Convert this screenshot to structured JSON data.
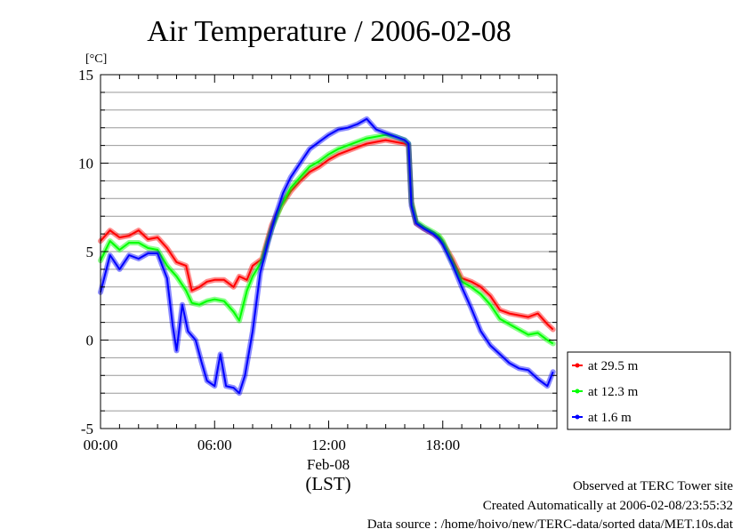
{
  "chart_data": {
    "type": "line",
    "title": "Air Temperature / 2006-02-08",
    "y_unit": "[°C]",
    "ylim": [
      -5,
      15
    ],
    "y_ticks": [
      {
        "value": 15,
        "label": "15"
      },
      {
        "value": 10,
        "label": "10"
      },
      {
        "value": 5,
        "label": "5"
      },
      {
        "value": 0,
        "label": "0"
      },
      {
        "value": -5,
        "label": "-5"
      }
    ],
    "xlim": [
      0,
      24
    ],
    "x_ticks": [
      {
        "value": 0,
        "label": "00:00"
      },
      {
        "value": 6,
        "label": "06:00"
      },
      {
        "value": 12,
        "label": "12:00"
      },
      {
        "value": 18,
        "label": "18:00"
      }
    ],
    "x_sublabel": "Feb-08",
    "x_axis_label": "(LST)",
    "grid": true,
    "legend_position": "right",
    "series": [
      {
        "name": "at 29.5 m",
        "color": "#ff0000",
        "points": [
          [
            0,
            5.6
          ],
          [
            0.5,
            6.2
          ],
          [
            1,
            5.8
          ],
          [
            1.5,
            5.9
          ],
          [
            2,
            6.2
          ],
          [
            2.5,
            5.7
          ],
          [
            3,
            5.8
          ],
          [
            3.5,
            5.2
          ],
          [
            4,
            4.4
          ],
          [
            4.5,
            4.2
          ],
          [
            4.8,
            2.8
          ],
          [
            5.2,
            3.0
          ],
          [
            5.6,
            3.3
          ],
          [
            6,
            3.4
          ],
          [
            6.5,
            3.4
          ],
          [
            7,
            3.0
          ],
          [
            7.3,
            3.6
          ],
          [
            7.7,
            3.4
          ],
          [
            8,
            4.2
          ],
          [
            8.5,
            4.6
          ],
          [
            9,
            6.5
          ],
          [
            9.5,
            7.6
          ],
          [
            10,
            8.4
          ],
          [
            10.5,
            9.0
          ],
          [
            11,
            9.5
          ],
          [
            11.5,
            9.8
          ],
          [
            12,
            10.2
          ],
          [
            12.5,
            10.5
          ],
          [
            13,
            10.7
          ],
          [
            13.5,
            10.9
          ],
          [
            14,
            11.1
          ],
          [
            14.5,
            11.2
          ],
          [
            15,
            11.3
          ],
          [
            15.5,
            11.2
          ],
          [
            16,
            11.1
          ],
          [
            16.2,
            11.0
          ],
          [
            16.35,
            7.8
          ],
          [
            16.6,
            6.6
          ],
          [
            17,
            6.3
          ],
          [
            17.5,
            6.0
          ],
          [
            17.8,
            5.8
          ],
          [
            18,
            5.5
          ],
          [
            18.5,
            4.6
          ],
          [
            19,
            3.5
          ],
          [
            19.5,
            3.3
          ],
          [
            20,
            3.0
          ],
          [
            20.5,
            2.5
          ],
          [
            21,
            1.7
          ],
          [
            21.5,
            1.5
          ],
          [
            22,
            1.4
          ],
          [
            22.5,
            1.3
          ],
          [
            23,
            1.5
          ],
          [
            23.5,
            0.9
          ],
          [
            23.8,
            0.6
          ]
        ]
      },
      {
        "name": "at 12.3 m",
        "color": "#00ff00",
        "points": [
          [
            0,
            4.5
          ],
          [
            0.5,
            5.6
          ],
          [
            1,
            5.1
          ],
          [
            1.5,
            5.5
          ],
          [
            2,
            5.5
          ],
          [
            2.5,
            5.2
          ],
          [
            3,
            5.1
          ],
          [
            3.5,
            4.2
          ],
          [
            4,
            3.6
          ],
          [
            4.5,
            2.8
          ],
          [
            4.8,
            2.1
          ],
          [
            5.2,
            2.0
          ],
          [
            5.6,
            2.2
          ],
          [
            6,
            2.3
          ],
          [
            6.5,
            2.2
          ],
          [
            7,
            1.6
          ],
          [
            7.3,
            1.1
          ],
          [
            7.7,
            2.8
          ],
          [
            8,
            3.6
          ],
          [
            8.5,
            4.5
          ],
          [
            9,
            6.3
          ],
          [
            9.5,
            7.6
          ],
          [
            10,
            8.6
          ],
          [
            10.5,
            9.2
          ],
          [
            11,
            9.8
          ],
          [
            11.5,
            10.1
          ],
          [
            12,
            10.5
          ],
          [
            12.5,
            10.8
          ],
          [
            13,
            11.0
          ],
          [
            13.5,
            11.2
          ],
          [
            14,
            11.4
          ],
          [
            14.5,
            11.5
          ],
          [
            15,
            11.6
          ],
          [
            15.5,
            11.5
          ],
          [
            16,
            11.3
          ],
          [
            16.2,
            11.1
          ],
          [
            16.35,
            7.8
          ],
          [
            16.6,
            6.7
          ],
          [
            17,
            6.4
          ],
          [
            17.5,
            6.1
          ],
          [
            17.8,
            5.9
          ],
          [
            18,
            5.6
          ],
          [
            18.5,
            4.4
          ],
          [
            19,
            3.3
          ],
          [
            19.5,
            3.0
          ],
          [
            20,
            2.6
          ],
          [
            20.5,
            2.0
          ],
          [
            21,
            1.2
          ],
          [
            21.5,
            0.9
          ],
          [
            22,
            0.6
          ],
          [
            22.5,
            0.3
          ],
          [
            23,
            0.4
          ],
          [
            23.5,
            0.0
          ],
          [
            23.8,
            -0.2
          ]
        ]
      },
      {
        "name": "at 1.6 m",
        "color": "#0000ff",
        "points": [
          [
            0,
            2.7
          ],
          [
            0.5,
            4.8
          ],
          [
            1,
            4.0
          ],
          [
            1.5,
            4.8
          ],
          [
            2,
            4.6
          ],
          [
            2.5,
            4.9
          ],
          [
            3,
            4.9
          ],
          [
            3.5,
            3.5
          ],
          [
            3.8,
            0.8
          ],
          [
            4,
            -0.6
          ],
          [
            4.3,
            2.0
          ],
          [
            4.6,
            0.5
          ],
          [
            5,
            0.0
          ],
          [
            5.3,
            -1.2
          ],
          [
            5.6,
            -2.3
          ],
          [
            6,
            -2.6
          ],
          [
            6.3,
            -0.8
          ],
          [
            6.6,
            -2.6
          ],
          [
            7,
            -2.7
          ],
          [
            7.3,
            -3.0
          ],
          [
            7.6,
            -2.0
          ],
          [
            8,
            0.5
          ],
          [
            8.4,
            3.8
          ],
          [
            8.8,
            5.5
          ],
          [
            9.2,
            7.0
          ],
          [
            9.6,
            8.3
          ],
          [
            10,
            9.2
          ],
          [
            10.5,
            10.0
          ],
          [
            11,
            10.8
          ],
          [
            11.5,
            11.2
          ],
          [
            12,
            11.6
          ],
          [
            12.5,
            11.9
          ],
          [
            13,
            12.0
          ],
          [
            13.5,
            12.2
          ],
          [
            14,
            12.5
          ],
          [
            14.5,
            11.9
          ],
          [
            15,
            11.7
          ],
          [
            15.5,
            11.5
          ],
          [
            16,
            11.3
          ],
          [
            16.2,
            11.1
          ],
          [
            16.35,
            7.6
          ],
          [
            16.6,
            6.6
          ],
          [
            17,
            6.3
          ],
          [
            17.5,
            6.0
          ],
          [
            17.8,
            5.7
          ],
          [
            18,
            5.4
          ],
          [
            18.5,
            4.3
          ],
          [
            19,
            3.0
          ],
          [
            19.5,
            1.8
          ],
          [
            20,
            0.5
          ],
          [
            20.5,
            -0.3
          ],
          [
            21,
            -0.8
          ],
          [
            21.5,
            -1.3
          ],
          [
            22,
            -1.6
          ],
          [
            22.5,
            -1.7
          ],
          [
            23,
            -2.2
          ],
          [
            23.5,
            -2.6
          ],
          [
            23.8,
            -1.8
          ]
        ]
      }
    ]
  },
  "footer": {
    "line1": "Observed at TERC Tower site",
    "line2": "Created Automatically at 2006-02-08/23:55:32",
    "line3": "Data source : /home/hoivo/new/TERC-data/sorted  data/MET.10s.dat"
  }
}
